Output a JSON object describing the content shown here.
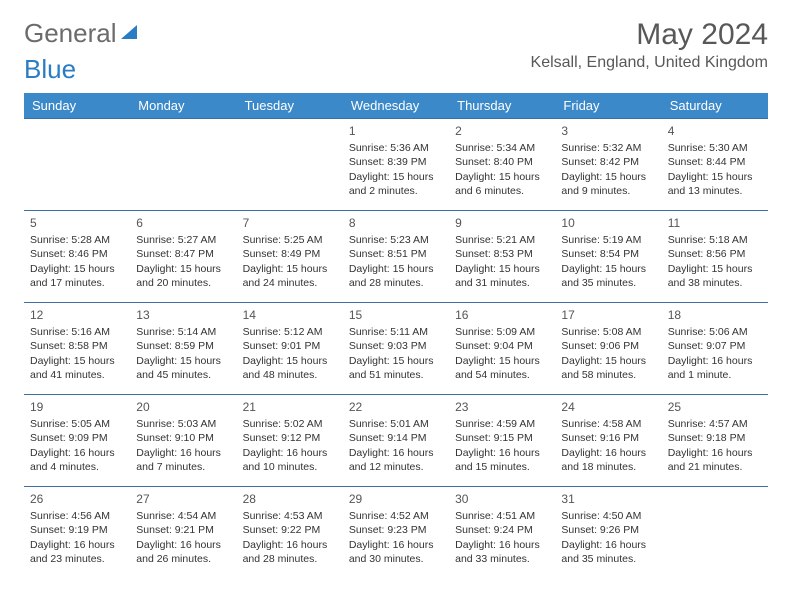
{
  "brand": {
    "part1": "General",
    "part2": "Blue"
  },
  "title": "May 2024",
  "location": "Kelsall, England, United Kingdom",
  "colors": {
    "header_bg": "#3b89c9",
    "header_text": "#ffffff",
    "row_border": "#3b6fa0",
    "title_color": "#585858",
    "brand_gray": "#6b6b6b",
    "brand_blue": "#2a7cc4",
    "cell_text": "#333333"
  },
  "typography": {
    "month_title_fontsize": 30,
    "location_fontsize": 16,
    "dayheader_fontsize": 13,
    "daynum_fontsize": 12,
    "cell_fontsize": 10.5
  },
  "day_headers": [
    "Sunday",
    "Monday",
    "Tuesday",
    "Wednesday",
    "Thursday",
    "Friday",
    "Saturday"
  ],
  "weeks": [
    [
      null,
      null,
      null,
      {
        "n": "1",
        "sr": "5:36 AM",
        "ss": "8:39 PM",
        "dl": "15 hours and 2 minutes."
      },
      {
        "n": "2",
        "sr": "5:34 AM",
        "ss": "8:40 PM",
        "dl": "15 hours and 6 minutes."
      },
      {
        "n": "3",
        "sr": "5:32 AM",
        "ss": "8:42 PM",
        "dl": "15 hours and 9 minutes."
      },
      {
        "n": "4",
        "sr": "5:30 AM",
        "ss": "8:44 PM",
        "dl": "15 hours and 13 minutes."
      }
    ],
    [
      {
        "n": "5",
        "sr": "5:28 AM",
        "ss": "8:46 PM",
        "dl": "15 hours and 17 minutes."
      },
      {
        "n": "6",
        "sr": "5:27 AM",
        "ss": "8:47 PM",
        "dl": "15 hours and 20 minutes."
      },
      {
        "n": "7",
        "sr": "5:25 AM",
        "ss": "8:49 PM",
        "dl": "15 hours and 24 minutes."
      },
      {
        "n": "8",
        "sr": "5:23 AM",
        "ss": "8:51 PM",
        "dl": "15 hours and 28 minutes."
      },
      {
        "n": "9",
        "sr": "5:21 AM",
        "ss": "8:53 PM",
        "dl": "15 hours and 31 minutes."
      },
      {
        "n": "10",
        "sr": "5:19 AM",
        "ss": "8:54 PM",
        "dl": "15 hours and 35 minutes."
      },
      {
        "n": "11",
        "sr": "5:18 AM",
        "ss": "8:56 PM",
        "dl": "15 hours and 38 minutes."
      }
    ],
    [
      {
        "n": "12",
        "sr": "5:16 AM",
        "ss": "8:58 PM",
        "dl": "15 hours and 41 minutes."
      },
      {
        "n": "13",
        "sr": "5:14 AM",
        "ss": "8:59 PM",
        "dl": "15 hours and 45 minutes."
      },
      {
        "n": "14",
        "sr": "5:12 AM",
        "ss": "9:01 PM",
        "dl": "15 hours and 48 minutes."
      },
      {
        "n": "15",
        "sr": "5:11 AM",
        "ss": "9:03 PM",
        "dl": "15 hours and 51 minutes."
      },
      {
        "n": "16",
        "sr": "5:09 AM",
        "ss": "9:04 PM",
        "dl": "15 hours and 54 minutes."
      },
      {
        "n": "17",
        "sr": "5:08 AM",
        "ss": "9:06 PM",
        "dl": "15 hours and 58 minutes."
      },
      {
        "n": "18",
        "sr": "5:06 AM",
        "ss": "9:07 PM",
        "dl": "16 hours and 1 minute."
      }
    ],
    [
      {
        "n": "19",
        "sr": "5:05 AM",
        "ss": "9:09 PM",
        "dl": "16 hours and 4 minutes."
      },
      {
        "n": "20",
        "sr": "5:03 AM",
        "ss": "9:10 PM",
        "dl": "16 hours and 7 minutes."
      },
      {
        "n": "21",
        "sr": "5:02 AM",
        "ss": "9:12 PM",
        "dl": "16 hours and 10 minutes."
      },
      {
        "n": "22",
        "sr": "5:01 AM",
        "ss": "9:14 PM",
        "dl": "16 hours and 12 minutes."
      },
      {
        "n": "23",
        "sr": "4:59 AM",
        "ss": "9:15 PM",
        "dl": "16 hours and 15 minutes."
      },
      {
        "n": "24",
        "sr": "4:58 AM",
        "ss": "9:16 PM",
        "dl": "16 hours and 18 minutes."
      },
      {
        "n": "25",
        "sr": "4:57 AM",
        "ss": "9:18 PM",
        "dl": "16 hours and 21 minutes."
      }
    ],
    [
      {
        "n": "26",
        "sr": "4:56 AM",
        "ss": "9:19 PM",
        "dl": "16 hours and 23 minutes."
      },
      {
        "n": "27",
        "sr": "4:54 AM",
        "ss": "9:21 PM",
        "dl": "16 hours and 26 minutes."
      },
      {
        "n": "28",
        "sr": "4:53 AM",
        "ss": "9:22 PM",
        "dl": "16 hours and 28 minutes."
      },
      {
        "n": "29",
        "sr": "4:52 AM",
        "ss": "9:23 PM",
        "dl": "16 hours and 30 minutes."
      },
      {
        "n": "30",
        "sr": "4:51 AM",
        "ss": "9:24 PM",
        "dl": "16 hours and 33 minutes."
      },
      {
        "n": "31",
        "sr": "4:50 AM",
        "ss": "9:26 PM",
        "dl": "16 hours and 35 minutes."
      },
      null
    ]
  ],
  "labels": {
    "sunrise": "Sunrise:",
    "sunset": "Sunset:",
    "daylight": "Daylight:"
  }
}
